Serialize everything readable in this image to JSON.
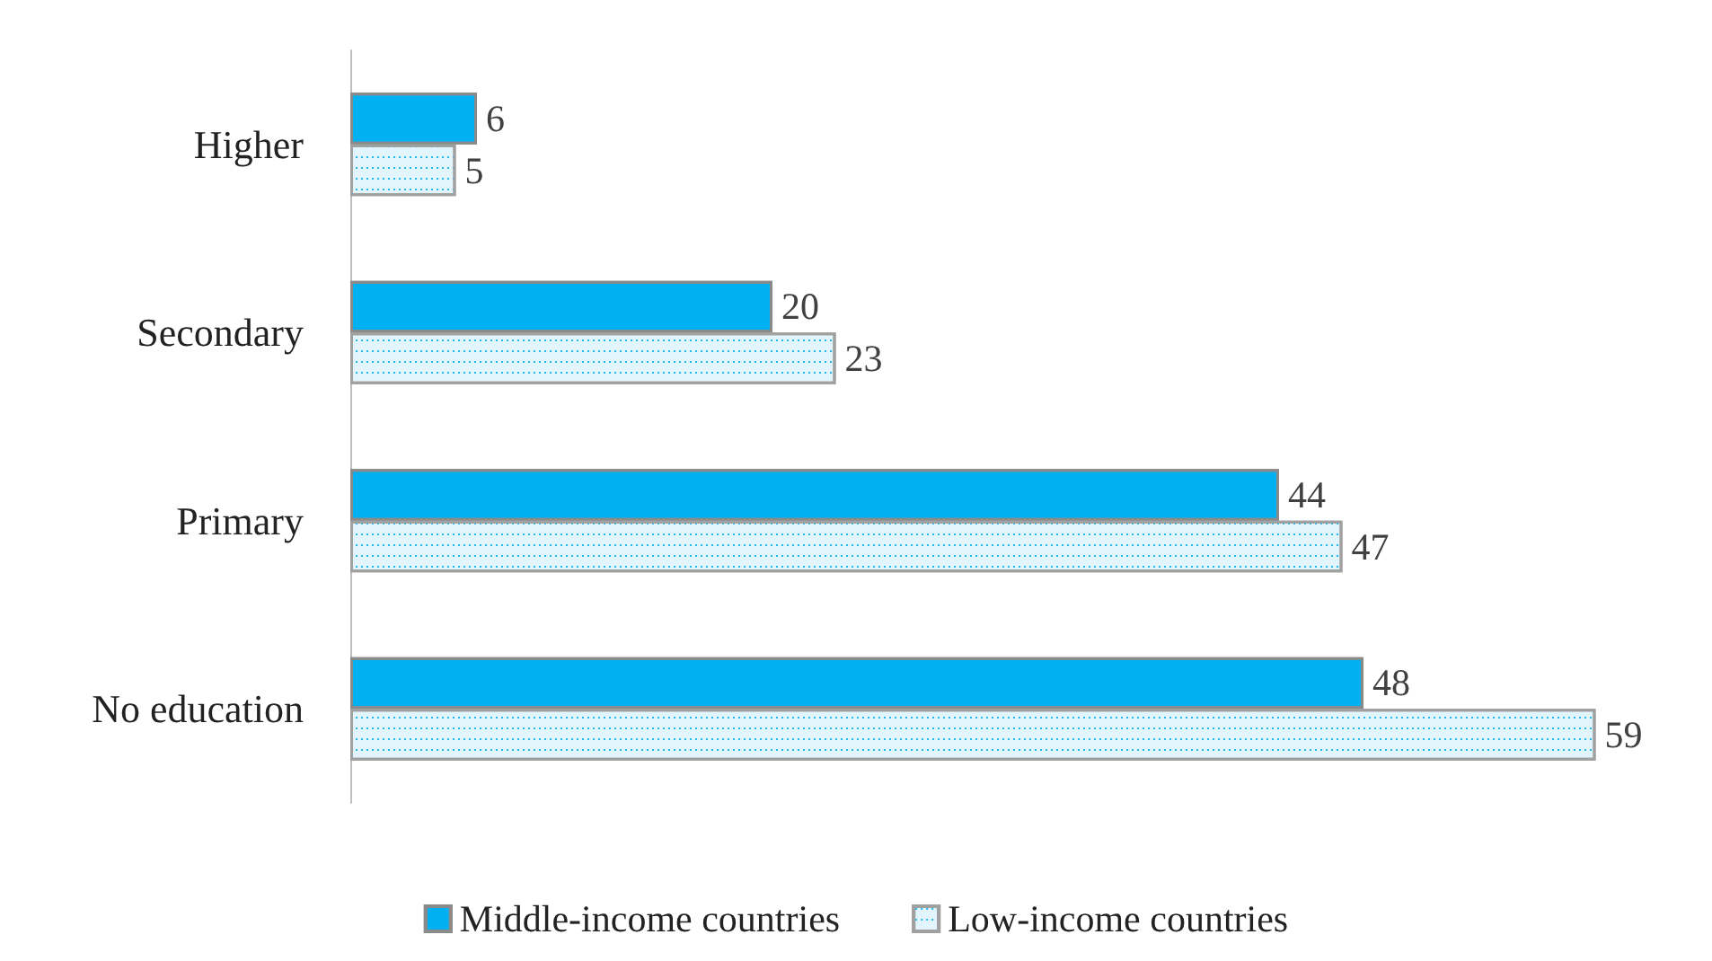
{
  "chart_data": {
    "type": "bar",
    "orientation": "horizontal",
    "categories": [
      "Higher",
      "Secondary",
      "Primary",
      "No education"
    ],
    "series": [
      {
        "name": "Middle-income countries",
        "color": "#00b0f0",
        "values": [
          6,
          20,
          44,
          48
        ]
      },
      {
        "name": "Low-income countries",
        "color": "#e3f5fc",
        "values": [
          5,
          23,
          47,
          59
        ]
      }
    ],
    "data_labels": true,
    "legend": "bottom",
    "tick_labels": "y"
  }
}
